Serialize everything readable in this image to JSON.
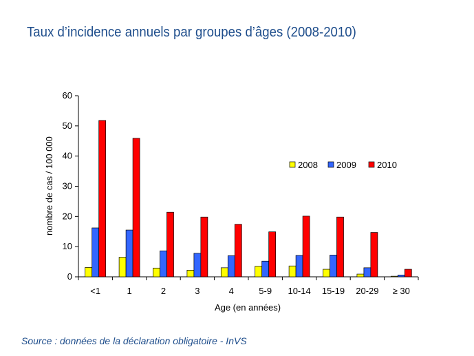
{
  "title": "Taux d’incidence annuels par groupes d’âges (2008-2010)",
  "source": "Source : données de la déclaration obligatoire - InVS",
  "chart_data": {
    "type": "bar",
    "title": "",
    "xlabel": "Age (en années)",
    "ylabel": "nombre de cas / 100 000",
    "ylim": [
      0,
      60
    ],
    "yticks": [
      0,
      10,
      20,
      30,
      40,
      50,
      60
    ],
    "categories": [
      "<1",
      "1",
      "2",
      "3",
      "4",
      "5-9",
      "10-14",
      "15-19",
      "20-29",
      "≥ 30"
    ],
    "series": [
      {
        "name": "2008",
        "color": "#ffff00",
        "values": [
          3.1,
          6.5,
          2.9,
          2.2,
          3.0,
          3.5,
          3.6,
          2.5,
          0.9,
          0.2
        ]
      },
      {
        "name": "2009",
        "color": "#3366ff",
        "values": [
          16.2,
          15.5,
          8.6,
          7.8,
          7.0,
          5.2,
          7.1,
          7.2,
          3.0,
          0.6
        ]
      },
      {
        "name": "2010",
        "color": "#ff0000",
        "values": [
          51.8,
          45.9,
          21.4,
          19.8,
          17.4,
          14.9,
          20.1,
          19.8,
          14.7,
          2.5
        ]
      }
    ],
    "grid": false,
    "legend_position": "right"
  }
}
